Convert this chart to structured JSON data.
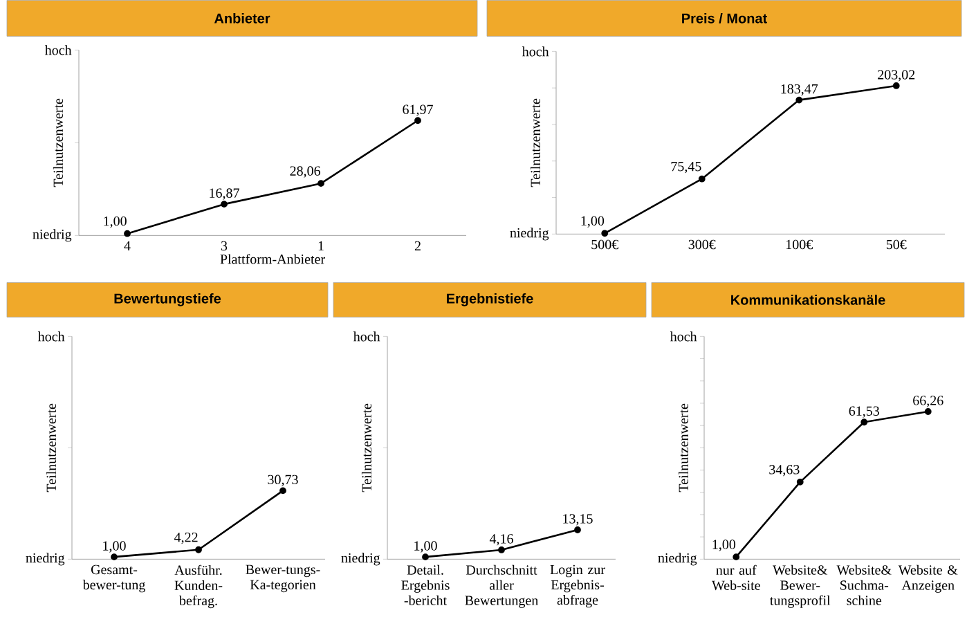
{
  "chart_data": [
    {
      "type": "line",
      "title": "Anbieter",
      "xlabel": "Plattform-Anbieter",
      "ylabel": "Teilnutzenwerte",
      "categories": [
        "4",
        "3",
        "1",
        "2"
      ],
      "values": [
        1.0,
        16.87,
        28.06,
        61.97
      ],
      "value_labels": [
        "1,00",
        "16,87",
        "28,06",
        "61,97"
      ],
      "color": "#000000",
      "marker": "circle",
      "ylim": [
        0,
        100
      ],
      "yticks": [
        {
          "value": 0,
          "label": null
        },
        {
          "value": 50,
          "label": null
        },
        {
          "value": 100,
          "label": null
        }
      ],
      "annotations": [
        "hoch",
        "niedrig"
      ]
    },
    {
      "type": "line",
      "title": "Preis / Monat",
      "ylabel": "Teilnutzenwerte",
      "categories": [
        "500€",
        "300€",
        "100€",
        "50€"
      ],
      "values": [
        1.0,
        75.45,
        183.47,
        203.02
      ],
      "value_labels": [
        "1,00",
        "75,45",
        "183,47",
        "203,02"
      ],
      "color": "#000000",
      "marker": "circle",
      "ylim": [
        0,
        250
      ],
      "yticks": [
        {
          "value": 0,
          "label": null
        },
        {
          "value": 50,
          "label": null
        },
        {
          "value": 100,
          "label": null
        },
        {
          "value": 150,
          "label": null
        },
        {
          "value": 200,
          "label": null
        },
        {
          "value": 250,
          "label": null
        }
      ],
      "annotations": [
        "hoch",
        "niedrig"
      ]
    },
    {
      "type": "line",
      "title": "Bewertungstiefe",
      "ylabel": "Teilnutzenwerte",
      "categories": [
        "Gesamt-bewer-tung",
        "Ausführ. Kunden-befrag.",
        "Bewer-tungs-Ka-tegorien"
      ],
      "values": [
        1.0,
        4.22,
        30.73
      ],
      "value_labels": [
        "1,00",
        "4,22",
        "30,73"
      ],
      "color": "#000000",
      "marker": "circle",
      "ylim": [
        0,
        100
      ],
      "yticks": [
        {
          "value": 0,
          "label": null
        },
        {
          "value": 50,
          "label": null
        },
        {
          "value": 100,
          "label": null
        }
      ],
      "annotations": [
        "hoch",
        "niedrig"
      ]
    },
    {
      "type": "line",
      "title": "Ergebnistiefe",
      "ylabel": "Teilnutzenwerte",
      "categories": [
        "Detail. Ergebnis -bericht",
        "Durchschnitt aller Bewertungen",
        "Login zur Ergebnis-abfrage"
      ],
      "values": [
        1.0,
        4.16,
        13.15
      ],
      "value_labels": [
        "1,00",
        "4,16",
        "13,15"
      ],
      "color": "#000000",
      "marker": "circle",
      "ylim": [
        0,
        100
      ],
      "yticks": [
        {
          "value": 0,
          "label": null
        },
        {
          "value": 50,
          "label": null
        },
        {
          "value": 100,
          "label": null
        }
      ],
      "annotations": [
        "hoch",
        "niedrig"
      ]
    },
    {
      "type": "line",
      "title": "Kommunikationskanäle",
      "ylabel": "Teilnutzenwerte",
      "categories": [
        "nur auf Web-site",
        "Website& Bewer-tungsprofil",
        "Website& Suchma-schine",
        "Website & Anzeigen"
      ],
      "values": [
        1.0,
        34.63,
        61.53,
        66.26
      ],
      "value_labels": [
        "1,00",
        "34,63",
        "61,53",
        "66,26"
      ],
      "color": "#000000",
      "marker": "circle",
      "ylim": [
        0,
        100
      ],
      "yticks": [
        {
          "value": 0,
          "label": null
        },
        {
          "value": 10,
          "label": null
        },
        {
          "value": 20,
          "label": null
        },
        {
          "value": 30,
          "label": null
        },
        {
          "value": 40,
          "label": null
        },
        {
          "value": 50,
          "label": null
        },
        {
          "value": 60,
          "label": null
        },
        {
          "value": 70,
          "label": null
        },
        {
          "value": 80,
          "label": null
        },
        {
          "value": 90,
          "label": null
        },
        {
          "value": 100,
          "label": null
        }
      ],
      "annotations": [
        "hoch",
        "niedrig"
      ]
    }
  ]
}
